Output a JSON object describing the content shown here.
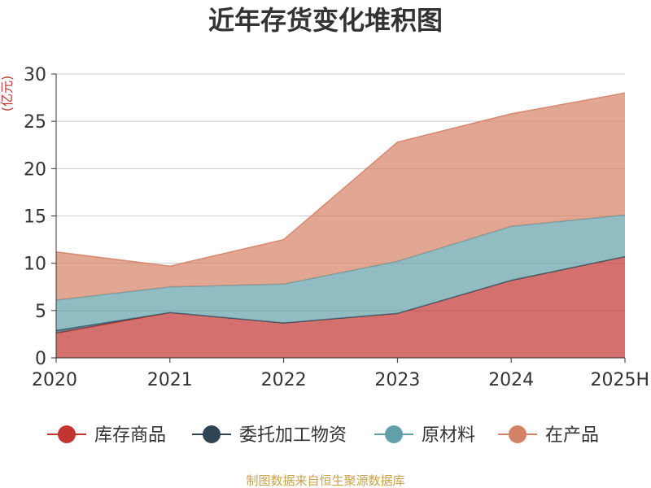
{
  "chart_data": {
    "type": "area",
    "title": "近年存货变化堆积图",
    "ylabel": "(亿元)",
    "xlabel": "",
    "categories": [
      "2020",
      "2021",
      "2022",
      "2023",
      "2024",
      "2025H"
    ],
    "ylim": [
      0,
      30
    ],
    "yticks": [
      0,
      5,
      10,
      15,
      20,
      25,
      30
    ],
    "stacked": true,
    "grid": true,
    "legend_position": "bottom",
    "series": [
      {
        "name": "库存商品",
        "color": "#c23531",
        "values": [
          2.6,
          4.8,
          3.7,
          4.7,
          8.2,
          10.7
        ]
      },
      {
        "name": "委托加工物资",
        "color": "#2f4554",
        "values": [
          0.3,
          0.0,
          0.0,
          0.0,
          0.0,
          0.0
        ]
      },
      {
        "name": "原材料",
        "color": "#61a0a8",
        "values": [
          3.2,
          2.7,
          4.1,
          5.5,
          5.7,
          4.4
        ]
      },
      {
        "name": "在产品",
        "color": "#d48265",
        "values": [
          5.1,
          2.2,
          4.7,
          12.6,
          11.9,
          12.9
        ]
      }
    ],
    "source": "制图数据来自恒生聚源数据库"
  }
}
